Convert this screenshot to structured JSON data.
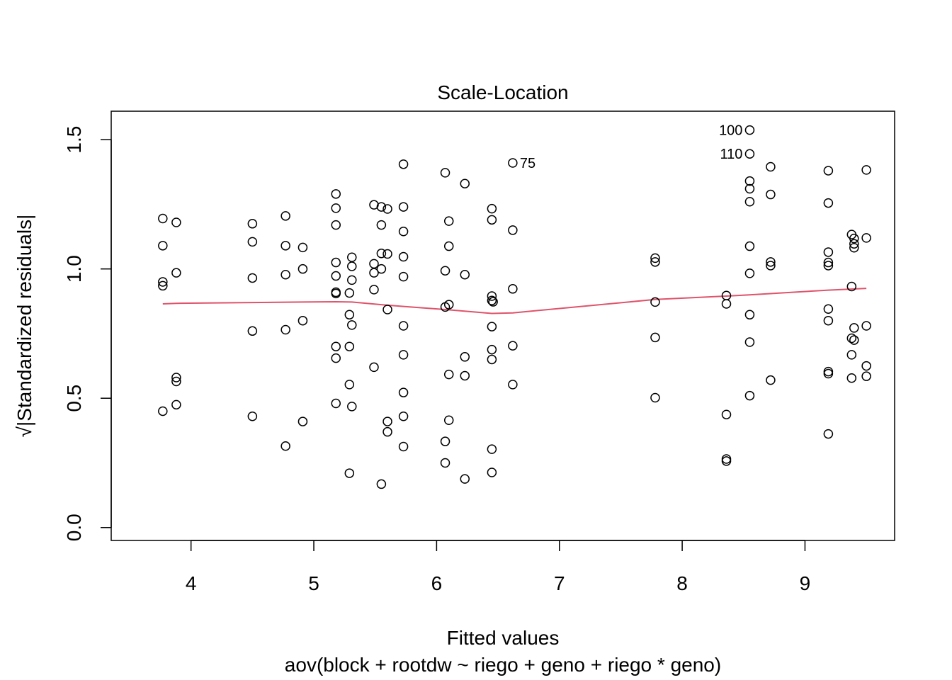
{
  "chart_data": {
    "type": "scatter",
    "title": "Scale-Location",
    "xlabel": "Fitted values",
    "subtitle": "aov(block + rootdw ~ riego + geno + riego * geno)",
    "ylabel": "√|Standardized residuals|",
    "xlim": [
      3.35,
      9.73
    ],
    "ylim": [
      -0.05,
      1.61
    ],
    "xticks": [
      4,
      5,
      6,
      7,
      8,
      9
    ],
    "yticks": [
      0.0,
      0.5,
      1.0,
      1.5
    ],
    "ytick_labels": [
      "0.0",
      "0.5",
      "1.0",
      "1.5"
    ],
    "grid": false,
    "colors": {
      "points": "#000000",
      "smooth": "#DF536B",
      "frame": "#000000"
    },
    "points": [
      {
        "x": 3.77,
        "y": 1.195
      },
      {
        "x": 3.77,
        "y": 1.09
      },
      {
        "x": 3.77,
        "y": 0.95
      },
      {
        "x": 3.77,
        "y": 0.935
      },
      {
        "x": 3.77,
        "y": 0.45
      },
      {
        "x": 3.88,
        "y": 1.18
      },
      {
        "x": 3.88,
        "y": 0.985
      },
      {
        "x": 3.88,
        "y": 0.58
      },
      {
        "x": 3.88,
        "y": 0.565
      },
      {
        "x": 3.88,
        "y": 0.475
      },
      {
        "x": 4.5,
        "y": 1.175
      },
      {
        "x": 4.5,
        "y": 1.105
      },
      {
        "x": 4.5,
        "y": 0.965
      },
      {
        "x": 4.5,
        "y": 0.76
      },
      {
        "x": 4.5,
        "y": 0.43
      },
      {
        "x": 4.77,
        "y": 1.205
      },
      {
        "x": 4.77,
        "y": 1.09
      },
      {
        "x": 4.77,
        "y": 0.978
      },
      {
        "x": 4.77,
        "y": 0.765
      },
      {
        "x": 4.77,
        "y": 0.315
      },
      {
        "x": 4.91,
        "y": 1.083
      },
      {
        "x": 4.91,
        "y": 1.0
      },
      {
        "x": 4.91,
        "y": 0.8
      },
      {
        "x": 4.91,
        "y": 0.41
      },
      {
        "x": 5.18,
        "y": 1.29
      },
      {
        "x": 5.18,
        "y": 1.235
      },
      {
        "x": 5.18,
        "y": 1.17
      },
      {
        "x": 5.18,
        "y": 1.025
      },
      {
        "x": 5.18,
        "y": 0.973
      },
      {
        "x": 5.18,
        "y": 0.91
      },
      {
        "x": 5.18,
        "y": 0.905
      },
      {
        "x": 5.18,
        "y": 0.7
      },
      {
        "x": 5.18,
        "y": 0.655
      },
      {
        "x": 5.18,
        "y": 0.48
      },
      {
        "x": 5.29,
        "y": 0.907
      },
      {
        "x": 5.29,
        "y": 0.823
      },
      {
        "x": 5.29,
        "y": 0.7
      },
      {
        "x": 5.29,
        "y": 0.553
      },
      {
        "x": 5.29,
        "y": 0.21
      },
      {
        "x": 5.31,
        "y": 1.045
      },
      {
        "x": 5.31,
        "y": 1.01
      },
      {
        "x": 5.31,
        "y": 0.957
      },
      {
        "x": 5.31,
        "y": 0.783
      },
      {
        "x": 5.31,
        "y": 0.468
      },
      {
        "x": 5.49,
        "y": 1.248
      },
      {
        "x": 5.49,
        "y": 1.02
      },
      {
        "x": 5.49,
        "y": 0.985
      },
      {
        "x": 5.49,
        "y": 0.92
      },
      {
        "x": 5.49,
        "y": 0.62
      },
      {
        "x": 5.55,
        "y": 1.24
      },
      {
        "x": 5.55,
        "y": 1.17
      },
      {
        "x": 5.55,
        "y": 1.06
      },
      {
        "x": 5.55,
        "y": 1.0
      },
      {
        "x": 5.55,
        "y": 0.168
      },
      {
        "x": 5.6,
        "y": 1.232
      },
      {
        "x": 5.6,
        "y": 1.058
      },
      {
        "x": 5.6,
        "y": 0.843
      },
      {
        "x": 5.6,
        "y": 0.41
      },
      {
        "x": 5.6,
        "y": 0.37
      },
      {
        "x": 5.73,
        "y": 1.405
      },
      {
        "x": 5.73,
        "y": 1.24
      },
      {
        "x": 5.73,
        "y": 1.145
      },
      {
        "x": 5.73,
        "y": 1.047
      },
      {
        "x": 5.73,
        "y": 0.97
      },
      {
        "x": 5.73,
        "y": 0.78
      },
      {
        "x": 5.73,
        "y": 0.668
      },
      {
        "x": 5.73,
        "y": 0.522
      },
      {
        "x": 5.73,
        "y": 0.43
      },
      {
        "x": 5.73,
        "y": 0.313
      },
      {
        "x": 6.07,
        "y": 1.372
      },
      {
        "x": 6.07,
        "y": 0.993
      },
      {
        "x": 6.07,
        "y": 0.853
      },
      {
        "x": 6.07,
        "y": 0.333
      },
      {
        "x": 6.07,
        "y": 0.25
      },
      {
        "x": 6.1,
        "y": 1.185
      },
      {
        "x": 6.1,
        "y": 1.088
      },
      {
        "x": 6.1,
        "y": 0.862
      },
      {
        "x": 6.1,
        "y": 0.592
      },
      {
        "x": 6.1,
        "y": 0.415
      },
      {
        "x": 6.23,
        "y": 1.33
      },
      {
        "x": 6.23,
        "y": 0.978
      },
      {
        "x": 6.23,
        "y": 0.66
      },
      {
        "x": 6.23,
        "y": 0.587
      },
      {
        "x": 6.23,
        "y": 0.188
      },
      {
        "x": 6.45,
        "y": 1.233
      },
      {
        "x": 6.45,
        "y": 1.19
      },
      {
        "x": 6.45,
        "y": 0.895
      },
      {
        "x": 6.45,
        "y": 0.878
      },
      {
        "x": 6.45,
        "y": 0.777
      },
      {
        "x": 6.45,
        "y": 0.688
      },
      {
        "x": 6.45,
        "y": 0.65
      },
      {
        "x": 6.45,
        "y": 0.303
      },
      {
        "x": 6.45,
        "y": 0.213
      },
      {
        "x": 6.46,
        "y": 0.873
      },
      {
        "x": 6.62,
        "y": 1.41
      },
      {
        "x": 6.62,
        "y": 1.15
      },
      {
        "x": 6.62,
        "y": 0.923
      },
      {
        "x": 6.62,
        "y": 0.703
      },
      {
        "x": 6.62,
        "y": 0.553
      },
      {
        "x": 7.78,
        "y": 1.042
      },
      {
        "x": 7.78,
        "y": 1.027
      },
      {
        "x": 7.78,
        "y": 0.872
      },
      {
        "x": 7.78,
        "y": 0.735
      },
      {
        "x": 7.78,
        "y": 0.502
      },
      {
        "x": 8.36,
        "y": 0.897
      },
      {
        "x": 8.36,
        "y": 0.865
      },
      {
        "x": 8.36,
        "y": 0.437
      },
      {
        "x": 8.36,
        "y": 0.265
      },
      {
        "x": 8.36,
        "y": 0.257
      },
      {
        "x": 8.55,
        "y": 1.537
      },
      {
        "x": 8.55,
        "y": 1.445
      },
      {
        "x": 8.55,
        "y": 1.34
      },
      {
        "x": 8.55,
        "y": 1.31
      },
      {
        "x": 8.55,
        "y": 1.26
      },
      {
        "x": 8.55,
        "y": 1.088
      },
      {
        "x": 8.55,
        "y": 0.983
      },
      {
        "x": 8.55,
        "y": 0.823
      },
      {
        "x": 8.55,
        "y": 0.717
      },
      {
        "x": 8.55,
        "y": 0.51
      },
      {
        "x": 8.72,
        "y": 1.395
      },
      {
        "x": 8.72,
        "y": 1.288
      },
      {
        "x": 8.72,
        "y": 1.027
      },
      {
        "x": 8.72,
        "y": 1.013
      },
      {
        "x": 8.72,
        "y": 0.57
      },
      {
        "x": 9.19,
        "y": 1.38
      },
      {
        "x": 9.19,
        "y": 1.255
      },
      {
        "x": 9.19,
        "y": 1.065
      },
      {
        "x": 9.19,
        "y": 1.025
      },
      {
        "x": 9.19,
        "y": 1.013
      },
      {
        "x": 9.19,
        "y": 0.845
      },
      {
        "x": 9.19,
        "y": 0.8
      },
      {
        "x": 9.19,
        "y": 0.603
      },
      {
        "x": 9.19,
        "y": 0.595
      },
      {
        "x": 9.19,
        "y": 0.362
      },
      {
        "x": 9.38,
        "y": 1.133
      },
      {
        "x": 9.38,
        "y": 0.932
      },
      {
        "x": 9.38,
        "y": 0.732
      },
      {
        "x": 9.38,
        "y": 0.668
      },
      {
        "x": 9.38,
        "y": 0.578
      },
      {
        "x": 9.4,
        "y": 1.118
      },
      {
        "x": 9.4,
        "y": 1.097
      },
      {
        "x": 9.4,
        "y": 1.082
      },
      {
        "x": 9.4,
        "y": 0.772
      },
      {
        "x": 9.4,
        "y": 0.725
      },
      {
        "x": 9.5,
        "y": 1.383
      },
      {
        "x": 9.5,
        "y": 1.12
      },
      {
        "x": 9.5,
        "y": 0.78
      },
      {
        "x": 9.5,
        "y": 0.625
      },
      {
        "x": 9.5,
        "y": 0.585
      }
    ],
    "smooth_line": [
      {
        "x": 3.77,
        "y": 0.865
      },
      {
        "x": 3.88,
        "y": 0.867
      },
      {
        "x": 4.5,
        "y": 0.87
      },
      {
        "x": 4.91,
        "y": 0.872
      },
      {
        "x": 5.18,
        "y": 0.873
      },
      {
        "x": 5.31,
        "y": 0.872
      },
      {
        "x": 5.55,
        "y": 0.862
      },
      {
        "x": 5.73,
        "y": 0.855
      },
      {
        "x": 6.1,
        "y": 0.842
      },
      {
        "x": 6.45,
        "y": 0.828
      },
      {
        "x": 6.62,
        "y": 0.83
      },
      {
        "x": 7.78,
        "y": 0.882
      },
      {
        "x": 8.36,
        "y": 0.895
      },
      {
        "x": 8.55,
        "y": 0.9
      },
      {
        "x": 9.19,
        "y": 0.918
      },
      {
        "x": 9.5,
        "y": 0.925
      }
    ],
    "annotations": [
      {
        "text": "100",
        "x": 8.55,
        "y": 1.537
      },
      {
        "text": "110",
        "x": 8.55,
        "y": 1.445
      },
      {
        "text": "75",
        "x": 6.62,
        "y": 1.41
      }
    ]
  }
}
